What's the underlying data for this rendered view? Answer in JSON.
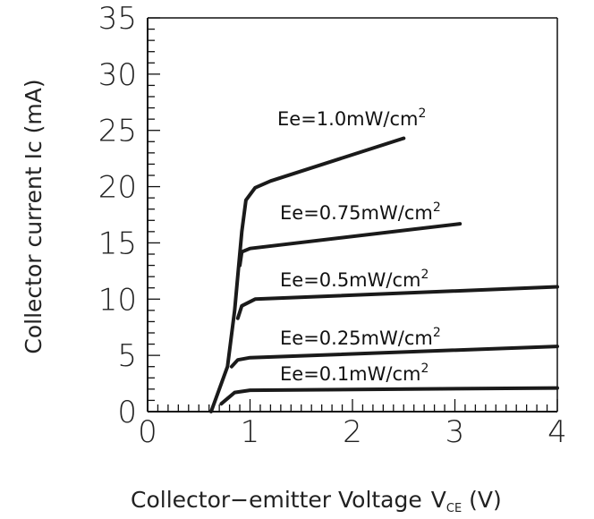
{
  "chart_data": {
    "type": "line",
    "title": "",
    "xlabel": "Collector−emitter  Voltage",
    "xlabel_symbol": "V",
    "xlabel_subscript": "CE",
    "xlabel_unit": "(V)",
    "ylabel": "Collector current  Ic  (mA)",
    "xlim": [
      0,
      4
    ],
    "ylim": [
      0,
      35
    ],
    "x_ticks": [
      0,
      1,
      2,
      3,
      4
    ],
    "y_ticks": [
      0,
      5,
      10,
      15,
      20,
      25,
      30,
      35
    ],
    "grid": false,
    "line_color": "#1a1a1a",
    "series": [
      {
        "name": "Ee=1.0mW/cm2",
        "label_main": "Ee=1.0mW/cm",
        "label_sup": "2",
        "points": [
          [
            0.62,
            0
          ],
          [
            0.78,
            4
          ],
          [
            0.85,
            9
          ],
          [
            0.92,
            16
          ],
          [
            0.96,
            18.8
          ],
          [
            1.05,
            19.9
          ],
          [
            1.2,
            20.5
          ],
          [
            2.5,
            24.3
          ]
        ]
      },
      {
        "name": "Ee=0.75mW/cm2",
        "label_main": "Ee=0.75mW/cm",
        "label_sup": "2",
        "points": [
          [
            0.9,
            13.0
          ],
          [
            0.92,
            14.2
          ],
          [
            1.0,
            14.5
          ],
          [
            3.05,
            16.7
          ]
        ]
      },
      {
        "name": "Ee=0.5mW/cm2",
        "label_main": "Ee=0.5mW/cm",
        "label_sup": "2",
        "points": [
          [
            0.88,
            8.3
          ],
          [
            0.92,
            9.4
          ],
          [
            1.05,
            10.0
          ],
          [
            4.0,
            11.1
          ]
        ]
      },
      {
        "name": "Ee=0.25mW/cm2",
        "label_main": "Ee=0.25mW/cm",
        "label_sup": "2",
        "points": [
          [
            0.82,
            4.0
          ],
          [
            0.88,
            4.6
          ],
          [
            1.0,
            4.8
          ],
          [
            4.0,
            5.8
          ]
        ]
      },
      {
        "name": "Ee=0.1mW/cm2",
        "label_main": "Ee=0.1mW/cm",
        "label_sup": "2",
        "points": [
          [
            0.72,
            0.7
          ],
          [
            0.85,
            1.7
          ],
          [
            1.0,
            1.9
          ],
          [
            4.0,
            2.1
          ]
        ]
      }
    ]
  }
}
